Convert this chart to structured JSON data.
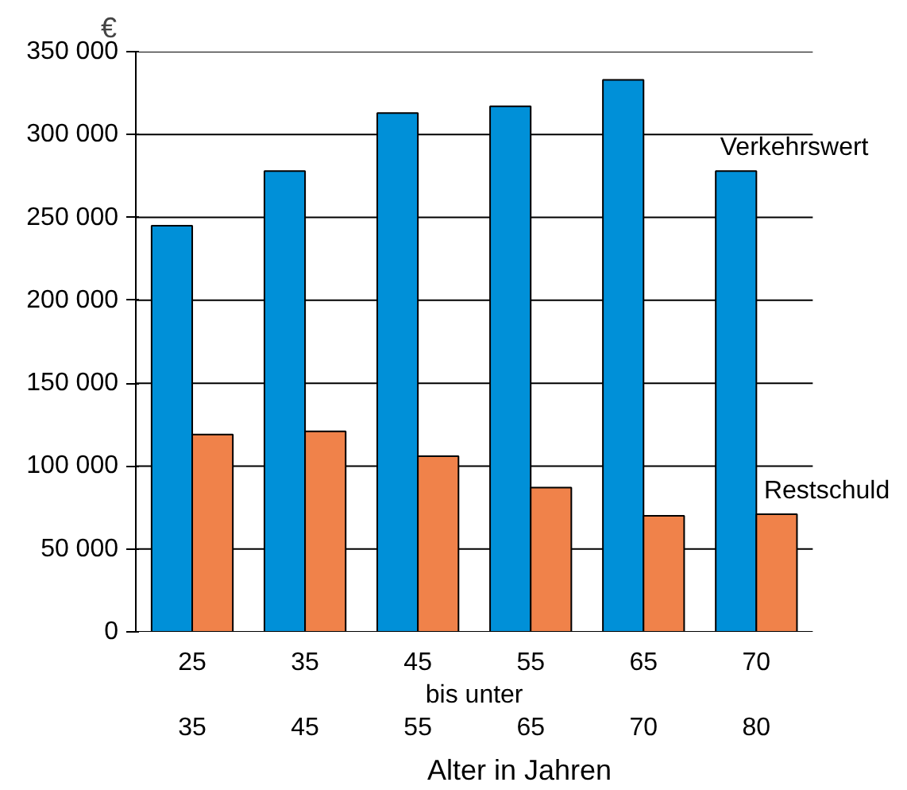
{
  "chart_data": {
    "type": "bar",
    "xlabel": "Alter in Jahren",
    "ylabel": "€",
    "categories": [
      "25\n35",
      "35\n45",
      "45\n55",
      "55\n65",
      "65\n70",
      "70\n80"
    ],
    "series": [
      {
        "name": "Verkehrswert",
        "color": "#0090d8",
        "values": [
          245000,
          278000,
          313000,
          317000,
          333000,
          278000
        ]
      },
      {
        "name": "Restschuld",
        "color": "#f0824a",
        "values": [
          119000,
          121000,
          106000,
          87000,
          70000,
          71000
        ]
      }
    ],
    "ylim": [
      0,
      350000
    ],
    "yticks": [
      {
        "value": 0,
        "label": "0"
      },
      {
        "value": 50000,
        "label": "50 000"
      },
      {
        "value": 100000,
        "label": "100 000"
      },
      {
        "value": 150000,
        "label": "150 000"
      },
      {
        "value": 200000,
        "label": "200 000"
      },
      {
        "value": 250000,
        "label": "250 000"
      },
      {
        "value": 300000,
        "label": "300 000"
      },
      {
        "value": 350000,
        "label": "350 000"
      }
    ],
    "grid": "y",
    "annotations": [
      "bis unter"
    ]
  }
}
